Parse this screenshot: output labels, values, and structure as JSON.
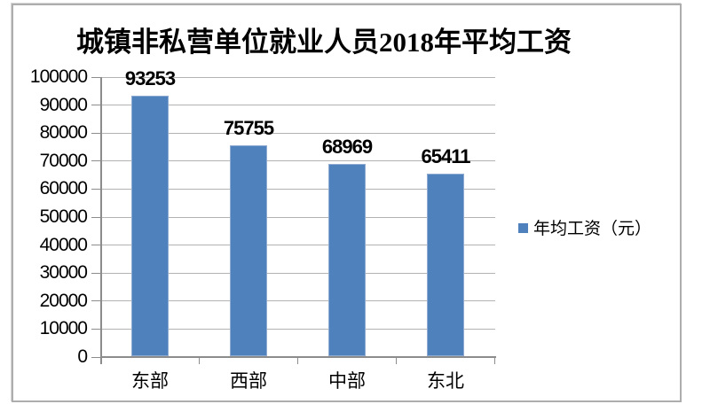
{
  "chart_data": {
    "type": "bar",
    "title": "城镇非私营单位就业人员2018年平均工资",
    "categories": [
      "东部",
      "西部",
      "中部",
      "东北"
    ],
    "values": [
      93253,
      75755,
      68969,
      65411
    ],
    "series": [
      {
        "name": "年均工资（元）",
        "values": [
          93253,
          75755,
          68969,
          65411
        ]
      }
    ],
    "legend_label": "年均工资（元）",
    "legend_position": "right",
    "ylim": [
      0,
      100000
    ],
    "ytick_step": 10000,
    "grid": true,
    "bar_color": "#4f81bd",
    "gridline_color": "#b3b3b3",
    "axis_color": "#8c8c8c"
  }
}
